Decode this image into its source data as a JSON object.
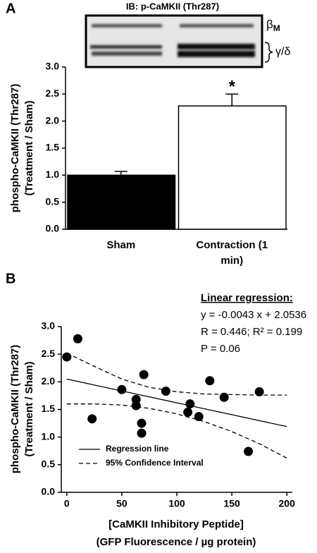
{
  "chart_data": [
    {
      "type": "bar",
      "panel": "A",
      "blot": {
        "title": "IB: p-CaMKII (Thr287)",
        "band_labels": [
          {
            "text": "β",
            "sub": "M"
          },
          {
            "text": "γ/δ"
          }
        ]
      },
      "ylabel": [
        "phospho-CaMKII (Thr287)",
        "(Treatment / Sham)"
      ],
      "categories": [
        "Sham",
        "Contraction (1 min)"
      ],
      "values": [
        1.0,
        2.28
      ],
      "errors": [
        0.07,
        0.22
      ],
      "colors": [
        "#000000",
        "#ffffff"
      ],
      "annotations": [
        {
          "text": "*",
          "category": 1
        }
      ],
      "ylim": [
        0,
        3
      ],
      "yticks": [
        {
          "value": 0,
          "label": "0.0"
        },
        0.5,
        {
          "value": 1,
          "label": "1.0"
        },
        1.5,
        {
          "value": 2,
          "label": "2.0"
        },
        2.5,
        {
          "value": 3,
          "label": "3.0"
        }
      ]
    },
    {
      "type": "scatter",
      "panel": "B",
      "ylabel": [
        "phospho-CaMKII (Thr287)",
        "(Treatment / Sham)"
      ],
      "xlabel": [
        "[CaMKII Inhibitory Peptide]",
        "(GFP Fluorescence / µg protein)"
      ],
      "x": [
        0,
        10,
        23,
        50,
        63,
        63,
        68,
        68,
        70,
        90,
        110,
        112,
        120,
        130,
        143,
        165,
        175
      ],
      "values": [
        2.45,
        2.78,
        1.33,
        1.86,
        1.68,
        1.57,
        1.25,
        1.07,
        2.13,
        1.83,
        1.45,
        1.6,
        1.37,
        2.02,
        1.72,
        0.74,
        1.82
      ],
      "color": "#000000",
      "regression": {
        "name": "Regression line",
        "x": [
          0,
          200
        ],
        "values": [
          2.05,
          1.19
        ]
      },
      "confidence_interval": {
        "name": "95% Confidence Interval",
        "x": [
          0,
          25,
          50,
          75,
          100,
          125,
          150,
          175,
          200
        ],
        "upper": [
          2.52,
          2.28,
          2.05,
          1.9,
          1.82,
          1.78,
          1.77,
          1.76,
          1.76
        ],
        "lower": [
          1.6,
          1.6,
          1.58,
          1.52,
          1.42,
          1.28,
          1.1,
          0.88,
          0.62
        ]
      },
      "annotation": {
        "title": "Linear regression:",
        "lines": [
          "y = -0.0043 x + 2.0536",
          "R = 0.446; R² = 0.199",
          "P = 0.06"
        ]
      },
      "legend": "lower left",
      "xlim": [
        -5,
        205
      ],
      "xticks": [
        0,
        50,
        100,
        150,
        200
      ],
      "ylim": [
        0,
        3
      ],
      "yticks": [
        {
          "value": 0,
          "label": "0.0"
        },
        0.5,
        {
          "value": 1,
          "label": "1.0"
        },
        1.5,
        {
          "value": 2,
          "label": "2.0"
        },
        2.5,
        {
          "value": 3,
          "label": "3.0"
        }
      ]
    }
  ]
}
